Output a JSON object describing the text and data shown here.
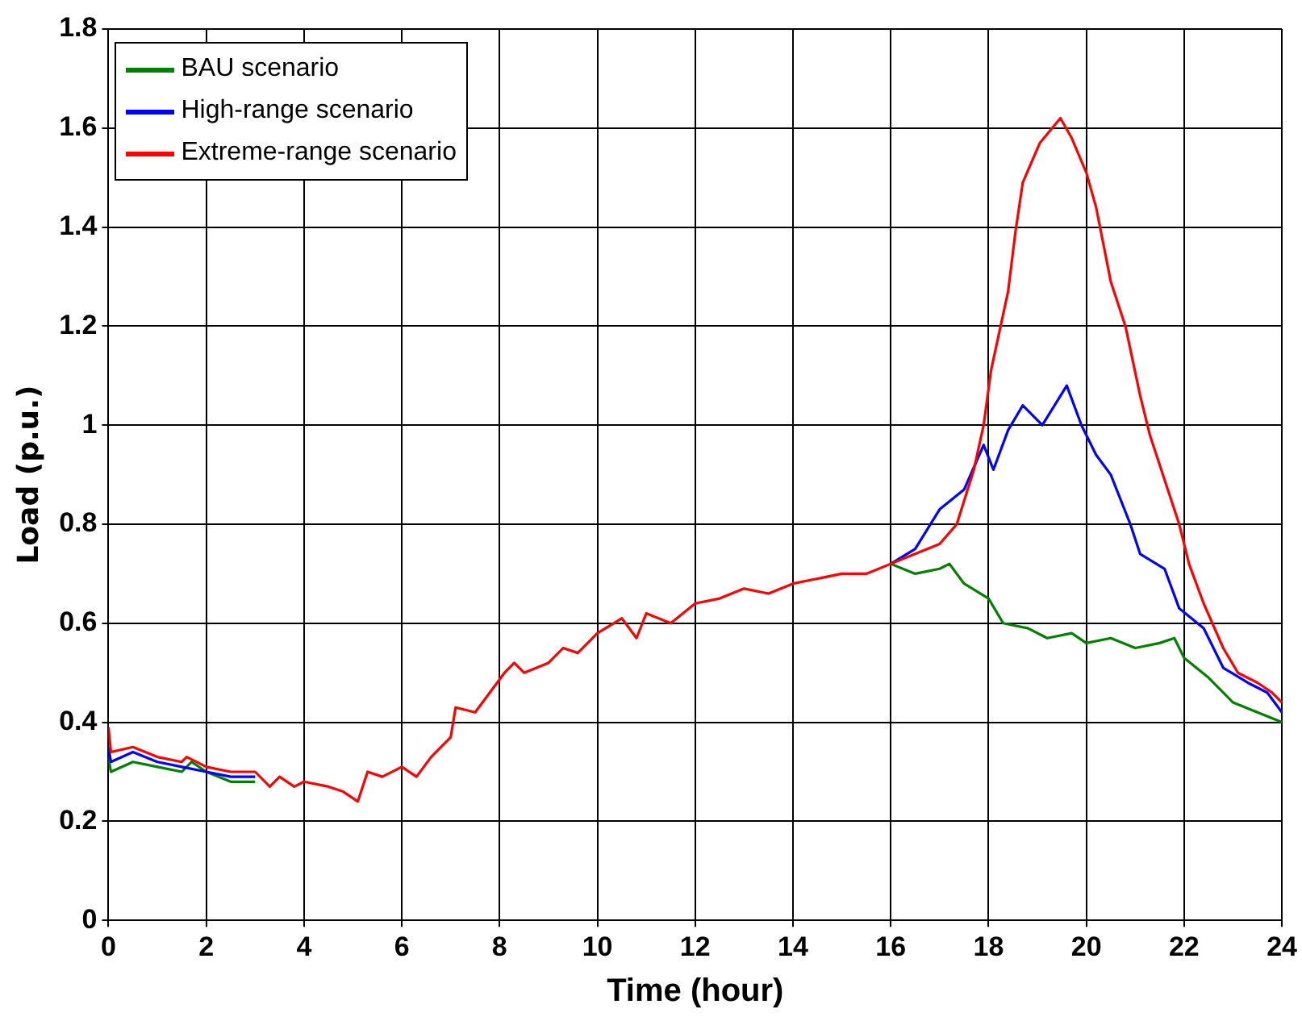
{
  "chart_data": {
    "type": "line",
    "xlabel": "Time (hour)",
    "ylabel": "Load (p.u.)",
    "xlim": [
      0,
      24
    ],
    "xticks": [
      0,
      2,
      4,
      6,
      8,
      10,
      12,
      14,
      16,
      18,
      20,
      22,
      24
    ],
    "ylim": [
      0,
      1.8
    ],
    "yticks": [
      0,
      0.2,
      0.4,
      0.6,
      0.8,
      1,
      1.2,
      1.4,
      1.6,
      1.8
    ],
    "grid": true,
    "legend": "top left",
    "marker": "none",
    "line_style": "solid",
    "series": [
      {
        "name": "BAU scenario",
        "color": "#008000",
        "x": [
          0,
          0.05,
          0.5,
          1,
          1.5,
          1.7,
          2,
          2.5,
          3,
          3.3,
          3.5,
          3.8,
          4,
          4.5,
          4.8,
          5.1,
          5.3,
          5.6,
          6,
          6.3,
          6.6,
          7,
          7.1,
          7.5,
          7.8,
          8.1,
          8.3,
          8.5,
          9,
          9.3,
          9.6,
          10,
          10.5,
          10.8,
          11,
          11.5,
          12,
          12.5,
          13,
          13.5,
          14,
          14.5,
          15,
          15.5,
          16,
          16.5,
          17,
          17.2,
          17.5,
          18,
          18.3,
          18.8,
          19.2,
          19.7,
          20,
          20.5,
          21,
          21.5,
          21.8,
          22,
          22.5,
          23,
          23.5,
          24
        ],
        "values": [
          0.33,
          0.3,
          0.32,
          0.31,
          0.3,
          0.32,
          0.3,
          0.28,
          0.28,
          null,
          null,
          null,
          null,
          null,
          null,
          null,
          null,
          null,
          null,
          null,
          null,
          null,
          null,
          null,
          null,
          null,
          null,
          null,
          null,
          null,
          null,
          null,
          null,
          null,
          null,
          null,
          null,
          null,
          null,
          null,
          null,
          null,
          null,
          null,
          0.72,
          0.7,
          0.71,
          0.72,
          0.68,
          0.65,
          0.6,
          0.59,
          0.57,
          0.58,
          0.56,
          0.57,
          0.55,
          0.56,
          0.57,
          0.53,
          0.49,
          0.44,
          0.42,
          0.4
        ]
      },
      {
        "name": "High-range scenario",
        "color": "#0000ff",
        "x": [
          0,
          0.05,
          0.5,
          1,
          1.5,
          2,
          2.5,
          3,
          3.3,
          3.5,
          3.8,
          4,
          4.5,
          4.8,
          5.1,
          5.3,
          5.6,
          6,
          6.3,
          6.6,
          7,
          7.1,
          7.5,
          7.8,
          8.1,
          8.3,
          8.5,
          9,
          9.3,
          9.6,
          10,
          10.5,
          10.8,
          11,
          11.5,
          12,
          12.5,
          13,
          13.5,
          14,
          14.5,
          15,
          15.5,
          16,
          16.5,
          17,
          17.5,
          17.9,
          18.1,
          18.4,
          18.7,
          19.1,
          19.6,
          19.9,
          20.2,
          20.5,
          20.9,
          21.1,
          21.6,
          21.9,
          22.4,
          22.8,
          23.3,
          23.7,
          24
        ],
        "values": [
          0.35,
          0.32,
          0.34,
          0.32,
          0.31,
          0.3,
          0.29,
          0.29,
          null,
          null,
          null,
          null,
          null,
          null,
          null,
          null,
          null,
          null,
          null,
          null,
          null,
          null,
          null,
          null,
          null,
          null,
          null,
          null,
          null,
          null,
          null,
          null,
          null,
          null,
          null,
          null,
          null,
          null,
          null,
          null,
          null,
          null,
          null,
          0.72,
          0.75,
          0.83,
          0.87,
          0.96,
          0.91,
          0.99,
          1.04,
          1,
          1.08,
          1,
          0.94,
          0.9,
          0.8,
          0.74,
          0.71,
          0.63,
          0.59,
          0.51,
          0.48,
          0.46,
          0.42
        ]
      },
      {
        "name": "Extreme-range scenario",
        "color": "#ff0000",
        "x": [
          0,
          0.05,
          0.5,
          1,
          1.5,
          1.6,
          2,
          2.5,
          3,
          3.3,
          3.5,
          3.8,
          4,
          4.5,
          4.8,
          5.1,
          5.3,
          5.6,
          6,
          6.3,
          6.6,
          7,
          7.1,
          7.5,
          7.8,
          8.1,
          8.3,
          8.5,
          9,
          9.3,
          9.6,
          10,
          10.5,
          10.8,
          11,
          11.5,
          12,
          12.5,
          13,
          13.5,
          14,
          14.5,
          15,
          15.5,
          16,
          16.5,
          17,
          17.35,
          17.7,
          17.9,
          18.05,
          18.4,
          18.55,
          18.7,
          19.05,
          19.47,
          19.7,
          20,
          20.2,
          20.5,
          20.8,
          21.1,
          21.3,
          21.7,
          21.9,
          22.1,
          22.4,
          22.8,
          23.1,
          23.5,
          23.8,
          24
        ],
        "values": [
          0.39,
          0.34,
          0.35,
          0.33,
          0.32,
          0.33,
          0.31,
          0.3,
          0.3,
          0.27,
          0.29,
          0.27,
          0.28,
          0.27,
          0.26,
          0.24,
          0.3,
          0.29,
          0.31,
          0.29,
          0.33,
          0.37,
          0.43,
          0.42,
          0.46,
          0.5,
          0.52,
          0.5,
          0.52,
          0.55,
          0.54,
          0.58,
          0.61,
          0.57,
          0.62,
          0.6,
          0.64,
          0.65,
          0.67,
          0.66,
          0.68,
          0.69,
          0.7,
          0.7,
          0.72,
          0.74,
          0.76,
          0.8,
          0.91,
          1,
          1.11,
          1.27,
          1.39,
          1.49,
          1.57,
          1.62,
          1.58,
          1.51,
          1.44,
          1.29,
          1.2,
          1.06,
          0.98,
          0.86,
          0.8,
          0.72,
          0.64,
          0.55,
          0.5,
          0.48,
          0.46,
          0.44
        ]
      }
    ]
  }
}
